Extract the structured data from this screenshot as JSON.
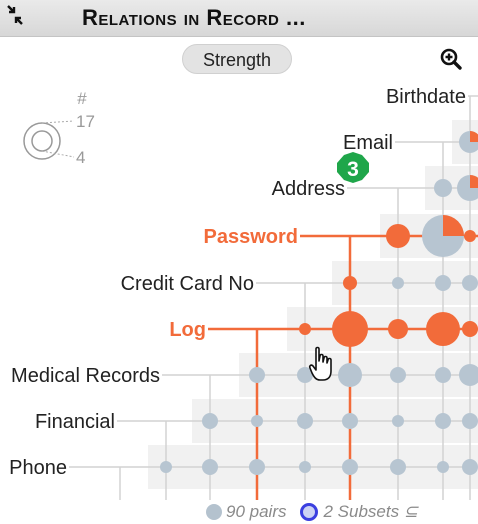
{
  "title": "Relations in Record ...",
  "toolbar": {
    "strength_label": "Strength"
  },
  "legend": {
    "header": "#",
    "max": "17",
    "min": "4"
  },
  "badge": "3",
  "columns": [
    "Birthdate",
    "Email",
    "Address",
    "Password",
    "Credit Card No",
    "Log",
    "Medical Records",
    "Financial",
    "Phone"
  ],
  "rows": [
    {
      "label": "Birthdate",
      "highlighted": false
    },
    {
      "label": "Email",
      "highlighted": false
    },
    {
      "label": "Address",
      "highlighted": false
    },
    {
      "label": "Password",
      "highlighted": true
    },
    {
      "label": "Credit Card No",
      "highlighted": false
    },
    {
      "label": "Log",
      "highlighted": true
    },
    {
      "label": "Medical Records",
      "highlighted": false
    },
    {
      "label": "Financial",
      "highlighted": false
    },
    {
      "label": "Phone",
      "highlighted": false
    }
  ],
  "footer": {
    "pairs": "90 pairs",
    "subsets": "2 Subsets ⊆"
  },
  "colors": {
    "accent": "#f26b3a",
    "node": "#b7c5d1",
    "badge": "#1fa64a",
    "subset": "#3b3fe0"
  }
}
